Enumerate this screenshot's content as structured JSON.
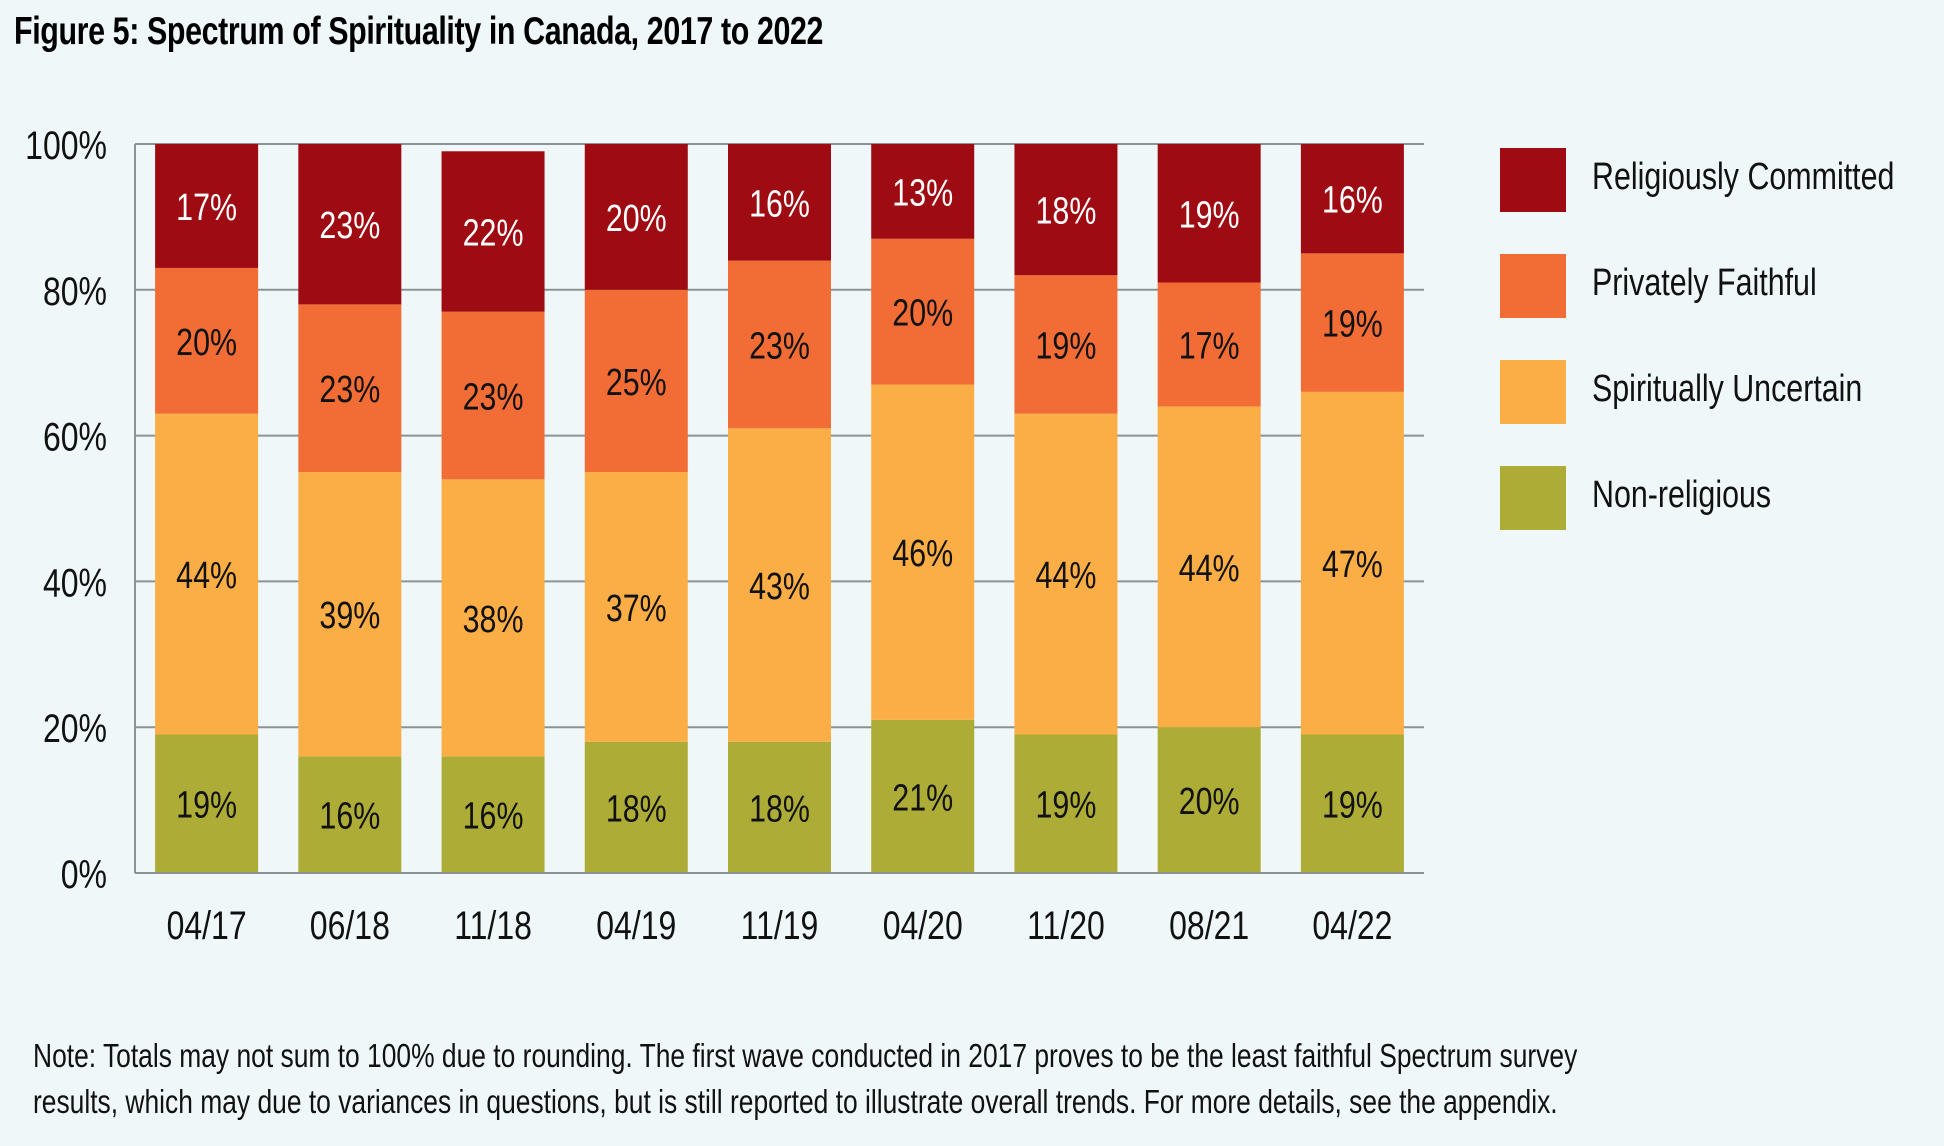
{
  "title": "Figure 5: Spectrum of Spirituality in Canada, 2017 to 2022",
  "chart_data": {
    "type": "bar",
    "stacked": true,
    "title": "Figure 5: Spectrum of Spirituality in Canada, 2017 to 2022",
    "xlabel": "",
    "ylabel": "",
    "ylim": [
      0,
      100
    ],
    "yticks": [
      0,
      20,
      40,
      60,
      80,
      100
    ],
    "ytick_labels": [
      "0%",
      "20%",
      "40%",
      "60%",
      "80%",
      "100%"
    ],
    "grid": true,
    "legend_position": "right",
    "categories": [
      "04/17",
      "06/18",
      "11/18",
      "04/19",
      "11/19",
      "04/20",
      "11/20",
      "08/21",
      "04/22"
    ],
    "series": [
      {
        "name": "Non-religious",
        "color": "#adac36",
        "label_color": "#111111",
        "values": [
          19,
          16,
          16,
          18,
          18,
          21,
          19,
          20,
          19
        ]
      },
      {
        "name": "Spiritually Uncertain",
        "color": "#faae45",
        "label_color": "#111111",
        "values": [
          44,
          39,
          38,
          37,
          43,
          46,
          44,
          44,
          47
        ]
      },
      {
        "name": "Privately Faithful",
        "color": "#f16d35",
        "label_color": "#111111",
        "values": [
          20,
          23,
          23,
          25,
          23,
          20,
          19,
          17,
          19
        ]
      },
      {
        "name": "Religiously Committed",
        "color": "#9e0b12",
        "label_color": "#ffffff",
        "values": [
          17,
          23,
          22,
          20,
          16,
          13,
          18,
          19,
          16
        ]
      }
    ],
    "legend_order": [
      "Religiously Committed",
      "Privately Faithful",
      "Spiritually Uncertain",
      "Non-religious"
    ],
    "value_suffix": "%"
  },
  "legend": [
    {
      "label": "Religiously Committed",
      "color": "#9e0b12"
    },
    {
      "label": "Privately Faithful",
      "color": "#f16d35"
    },
    {
      "label": "Spiritually Uncertain",
      "color": "#faae45"
    },
    {
      "label": "Non-religious",
      "color": "#adac36"
    }
  ],
  "note": {
    "line1": "Note: Totals may not sum to 100% due to rounding. The first wave conducted in 2017 proves to be the least faithful Spectrum survey",
    "line2": "results, which may due to variances in questions, but is still reported to illustrate overall trends. For more details, see the appendix."
  }
}
